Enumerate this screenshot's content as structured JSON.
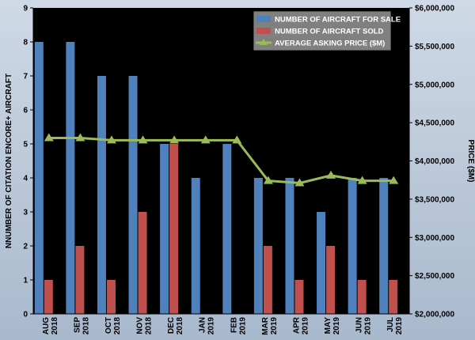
{
  "chart_data": {
    "type": "bar",
    "categories": [
      [
        "AUG",
        "2018"
      ],
      [
        "SEP",
        "2018"
      ],
      [
        "OCT",
        "2018"
      ],
      [
        "NOV",
        "2018"
      ],
      [
        "DEC",
        "2018"
      ],
      [
        "JAN",
        "2019"
      ],
      [
        "FEB",
        "2019"
      ],
      [
        "MAR",
        "2019"
      ],
      [
        "APR",
        "2019"
      ],
      [
        "MAY",
        "2019"
      ],
      [
        "JUN",
        "2019"
      ],
      [
        "JUL",
        "2019"
      ]
    ],
    "series": [
      {
        "name": "NUMBER OF AIRCRAFT FOR SALE",
        "type": "bar",
        "axis": "left",
        "color": "#4f81bd",
        "values": [
          8,
          8,
          7,
          7,
          5,
          4,
          5,
          4,
          4,
          3,
          4,
          4
        ]
      },
      {
        "name": "NUMBER OF AIRCRAFT SOLD",
        "type": "bar",
        "axis": "left",
        "color": "#c0504d",
        "values": [
          1,
          2,
          1,
          3,
          5,
          0,
          0,
          2,
          1,
          2,
          1,
          1
        ]
      },
      {
        "name": "AVERAGE ASKING PRICE ($M)",
        "type": "line",
        "axis": "right",
        "color": "#9bbb59",
        "values": [
          4300000,
          4300000,
          4270000,
          4270000,
          4270000,
          4270000,
          4270000,
          3740000,
          3710000,
          3810000,
          3740000,
          3740000
        ]
      }
    ],
    "ylabel": "NNUMBER OF CITATION ENCORE+ AIRCRAFT",
    "y2label": "PRICE ($M)",
    "ylim": [
      0,
      9
    ],
    "y2lim": [
      2000000,
      6000000
    ],
    "yticks": [
      "0",
      "1",
      "2",
      "3",
      "4",
      "5",
      "6",
      "7",
      "8",
      "9"
    ],
    "y2ticks": [
      "$2,000,000",
      "$2,500,000",
      "$3,000,000",
      "$3,500,000",
      "$4,000,000",
      "$4,500,000",
      "$5,000,000",
      "$5,500,000",
      "$6,000,000"
    ],
    "legend": "top-right",
    "plot_background": "#000000",
    "grid": false
  }
}
